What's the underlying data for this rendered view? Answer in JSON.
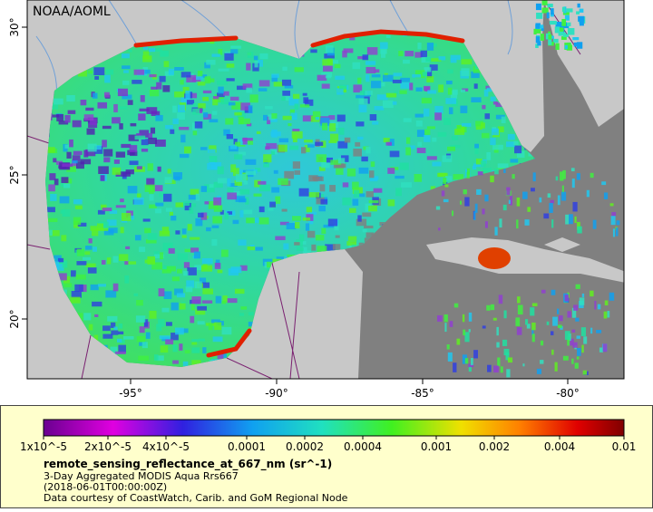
{
  "header": {
    "credit": "NOAA/AOML"
  },
  "map": {
    "lon_labels": [
      "-95°",
      "-90°",
      "-85°",
      "-80°"
    ],
    "lat_labels": [
      "20°",
      "25°",
      "30°"
    ]
  },
  "colorbar": {
    "labels": [
      "1x10^-5",
      "2x10^-5",
      "4x10^-5",
      "0.0001",
      "0.0002",
      "0.0004",
      "0.001",
      "0.002",
      "0.004",
      "0.01"
    ],
    "title": "remote_sensing_reflectance_at_667_nm (sr^-1)",
    "lines": [
      "3-Day Aggregated MODIS Aqua Rrs667",
      "(2018-06-01T00:00:00Z)",
      "Data courtesy of CoastWatch, Carib. and GoM Regional Node"
    ]
  }
}
